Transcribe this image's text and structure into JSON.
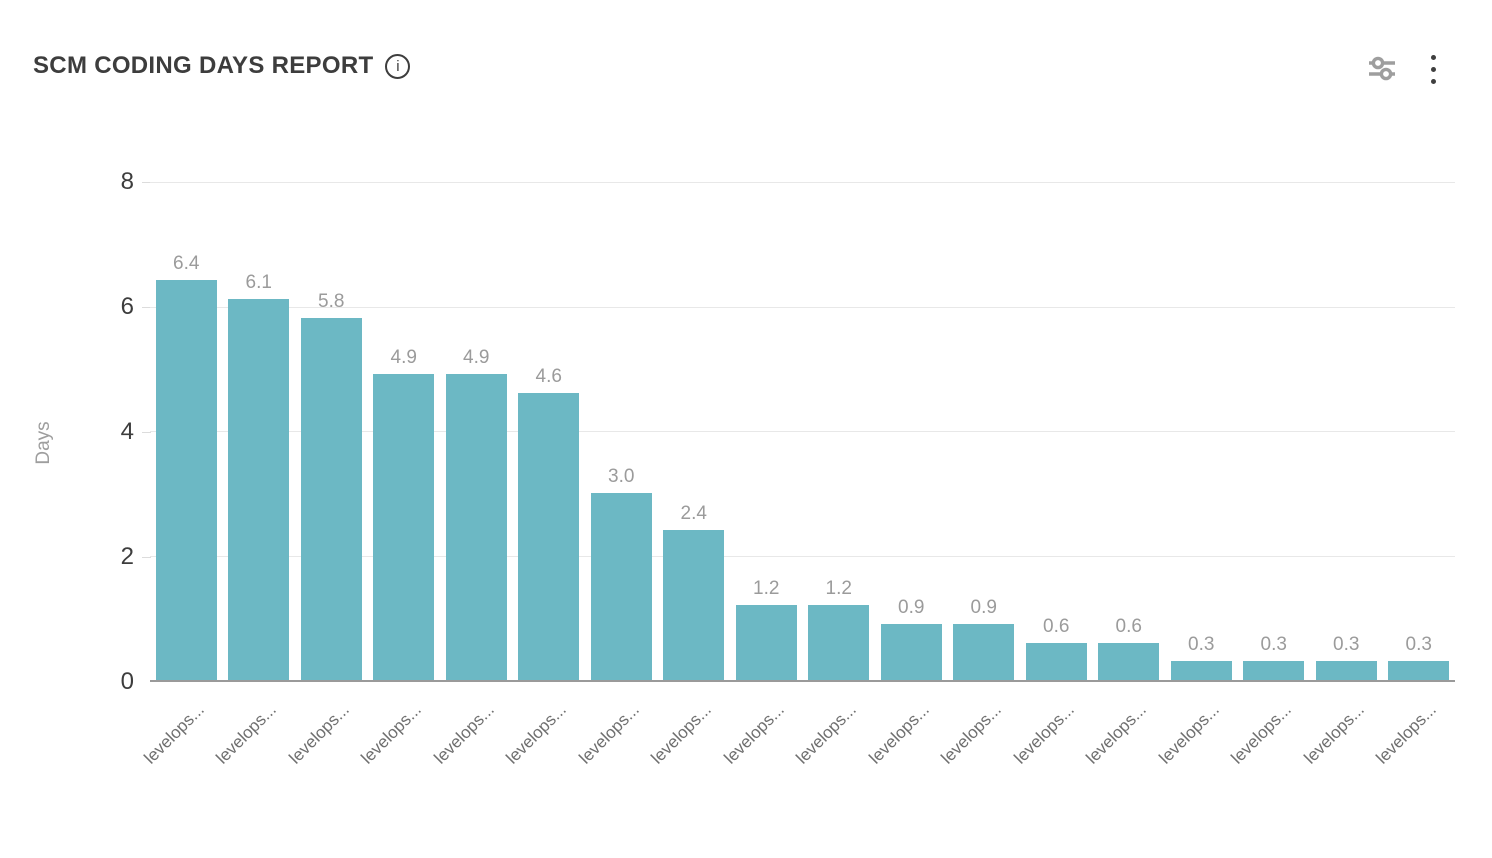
{
  "header": {
    "title": "SCM CODING DAYS REPORT",
    "info_icon_glyph": "i"
  },
  "chart_data": {
    "type": "bar",
    "title": "SCM CODING DAYS REPORT",
    "categories": [
      "levelops...",
      "levelops...",
      "levelops...",
      "levelops...",
      "levelops...",
      "levelops...",
      "levelops...",
      "levelops...",
      "levelops...",
      "levelops...",
      "levelops...",
      "levelops...",
      "levelops...",
      "levelops...",
      "levelops...",
      "levelops...",
      "levelops...",
      "levelops..."
    ],
    "values": [
      6.4,
      6.1,
      5.8,
      4.9,
      4.9,
      4.6,
      3.0,
      2.4,
      1.2,
      1.2,
      0.9,
      0.9,
      0.6,
      0.6,
      0.3,
      0.3,
      0.3,
      0.3
    ],
    "value_labels": [
      "6.4",
      "6.1",
      "5.8",
      "4.9",
      "4.9",
      "4.6",
      "3.0",
      "2.4",
      "1.2",
      "1.2",
      "0.9",
      "0.9",
      "0.6",
      "0.6",
      "0.3",
      "0.3",
      "0.3",
      "0.3"
    ],
    "xlabel": "",
    "ylabel": "Days",
    "yticks": [
      0,
      2,
      4,
      6,
      8
    ],
    "ylim": [
      0,
      8
    ],
    "grid": true,
    "legend": false,
    "bar_color": "#6CB8C4",
    "value_label_color": "#9b9b9b",
    "axis_label_color": "#3d3d3d"
  }
}
